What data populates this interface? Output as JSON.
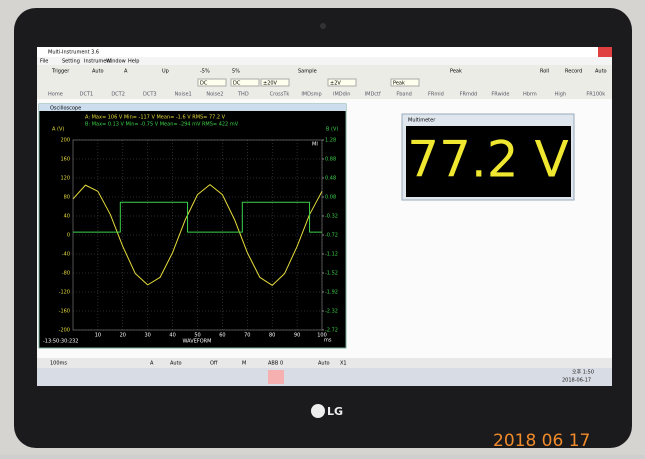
{
  "photo": {
    "brand": "LG",
    "date_stamp": "2018 06 17"
  },
  "window": {
    "title": "Multi-Instrument 3.6",
    "menu": [
      "File",
      "Setting",
      "Instrument",
      "Window",
      "Help"
    ],
    "toolbar1": [
      "Trigger",
      "Auto",
      "A",
      "Up",
      "-5%",
      "5%",
      "Sample",
      "Peak",
      "Roll",
      "Record",
      "Auto"
    ],
    "toolbar2": [
      "DC",
      "DC",
      "±20V",
      "±2V",
      "Peak"
    ],
    "tabs": [
      "Home",
      "DCT1",
      "DCT2",
      "DCT3",
      "Noise1",
      "Noise2",
      "THD",
      "CrossTk",
      "IMDsmp",
      "IMDdin",
      "IMDctf",
      "Fband",
      "FRmid",
      "FRmdd",
      "FRwide",
      "Hbrm",
      "High",
      "FR100k"
    ],
    "bottom_bar": [
      "100ms",
      "A",
      "Auto",
      "Off",
      "M",
      "ABB",
      "0",
      "Auto",
      "X1"
    ]
  },
  "oscilloscope": {
    "type": "line",
    "title": "Oscilloscope",
    "stats": [
      "A:  Max=   106   V  Min=   -117   V  Mean=   -1.6   V  RMS=   77.2   V",
      "B:  Max=   0.13   V  Min=   -0.75  V  Mean=  -294  mV  RMS=   422   mV"
    ],
    "ylabel": "A (V)",
    "y2label": "B (V)",
    "xlabel": "WAVEFORM",
    "xunit": "ms",
    "timestamp": "-13:50:30:232",
    "marker": "MI",
    "xlim": [
      0,
      100
    ],
    "xticks": [
      10,
      20,
      30,
      40,
      50,
      60,
      70,
      80,
      90,
      100
    ],
    "ylim": [
      -200,
      200
    ],
    "yticks": [
      200,
      160,
      120,
      80,
      40,
      0,
      -40,
      -80,
      -120,
      -160,
      -200
    ],
    "y2lim": [
      -2.72,
      1.28
    ],
    "y2ticks": [
      1.28,
      0.88,
      0.48,
      0.08,
      -0.32,
      -0.72,
      -1.12,
      -1.52,
      -1.92,
      -2.32,
      -2.72
    ],
    "x": [
      0,
      5,
      10,
      15,
      20,
      25,
      30,
      35,
      40,
      45,
      50,
      55,
      60,
      65,
      70,
      75,
      80,
      85,
      90,
      95,
      100
    ],
    "series": [
      {
        "color": "#e6dc3c",
        "values": [
          76,
          105,
          92,
          43,
          -24,
          -81,
          -105,
          -89,
          -37,
          31,
          85,
          106,
          85,
          31,
          -37,
          -89,
          -106,
          -81,
          -24,
          43,
          92
        ]
      },
      {
        "color": "#3cd24a",
        "axis": "y2",
        "x": [
          0,
          19,
          19,
          46,
          46,
          68,
          68,
          95,
          95,
          100
        ],
        "values": [
          -0.66,
          -0.66,
          -0.03,
          -0.03,
          -0.66,
          -0.66,
          -0.03,
          -0.03,
          -0.66,
          -0.66
        ]
      }
    ]
  },
  "multimeter": {
    "title": "Multimeter",
    "reading": "77.2 V"
  },
  "taskbar": {
    "time": "오후 1:50",
    "date": "2018-06-17"
  }
}
